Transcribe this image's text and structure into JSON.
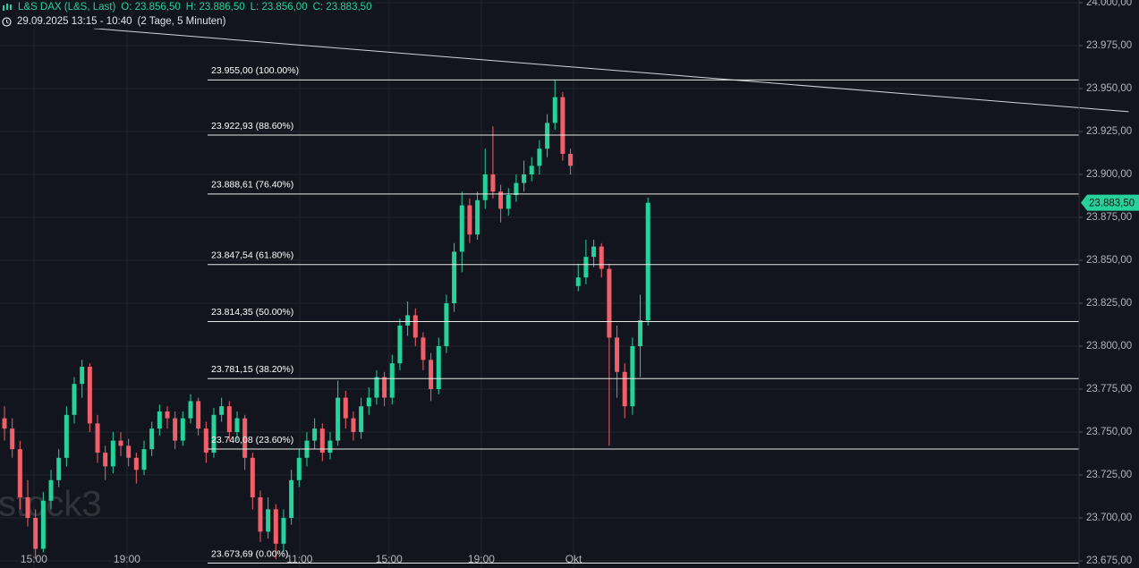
{
  "header": {
    "symbol": "L&S DAX (L&S, Last)",
    "ohlc": [
      "O: 23.856,50",
      "H: 23.886,50",
      "L: 23.856,00",
      "C: 23.883,50"
    ],
    "range": "29.09.2025 13:15 - 10:40",
    "interval": "(2 Tage, 5 Minuten)"
  },
  "chart_data": {
    "type": "candlestick",
    "watermark": "stock3",
    "up_color": "#26d19b",
    "down_color": "#f0606a",
    "grid": true,
    "xlim": [
      -0.58,
      138.6
    ],
    "ylim": [
      23675,
      24000
    ],
    "xticks": [
      {
        "value": 3.8,
        "label": "15:00"
      },
      {
        "value": 15.8,
        "label": "19:00"
      },
      {
        "value": 38.07,
        "label": "11:00"
      },
      {
        "value": 49.6,
        "label": "15:00"
      },
      {
        "value": 61.5,
        "label": "19:00"
      },
      {
        "value": 73.4,
        "label": "Okt"
      }
    ],
    "yticks": [
      {
        "value": 23675,
        "label": "23.675,00"
      },
      {
        "value": 23700,
        "label": "23.700,00"
      },
      {
        "value": 23725,
        "label": "23.725,00"
      },
      {
        "value": 23750,
        "label": "23.750,00"
      },
      {
        "value": 23775,
        "label": "23.775,00"
      },
      {
        "value": 23800,
        "label": "23.800,00"
      },
      {
        "value": 23825,
        "label": "23.825,00"
      },
      {
        "value": 23850,
        "label": "23.850,00"
      },
      {
        "value": 23875,
        "label": "23.875,00"
      },
      {
        "value": 23900,
        "label": "23.900,00"
      },
      {
        "value": 23925,
        "label": "23.925,00"
      },
      {
        "value": 23950,
        "label": "23.950,00"
      },
      {
        "value": 23975,
        "label": "23.975,00"
      },
      {
        "value": 24000,
        "label": "24.000,00"
      }
    ],
    "last_price": {
      "value": 23883.5,
      "label": "23.883,50"
    },
    "fib_levels": [
      {
        "value": 23955,
        "label": "23.955,00 (100.00%)"
      },
      {
        "value": 23922.93,
        "label": "23.922,93 (88.60%)"
      },
      {
        "value": 23888.61,
        "label": "23.888,61 (76.40%)"
      },
      {
        "value": 23847.54,
        "label": "23.847,54 (61.80%)"
      },
      {
        "value": 23814.35,
        "label": "23.814,35 (50.00%)"
      },
      {
        "value": 23781.15,
        "label": "23.781,15 (38.20%)"
      },
      {
        "value": 23740.08,
        "label": "23.740,08 (23.60%)"
      },
      {
        "value": 23673.69,
        "label": "23.673,69 (0.00%)"
      }
    ],
    "trendline": {
      "x": [
        11.5,
        145
      ],
      "y": [
        23985,
        23936.5
      ]
    },
    "candles": [
      [
        23758,
        23765,
        23745,
        23752
      ],
      [
        23752,
        23758,
        23735,
        23740
      ],
      [
        23740,
        23745,
        23705,
        23712
      ],
      [
        23712,
        23722,
        23695,
        23700
      ],
      [
        23700,
        23705,
        23676,
        23682
      ],
      [
        23682,
        23715,
        23680,
        23710
      ],
      [
        23710,
        23728,
        23705,
        23722
      ],
      [
        23722,
        23740,
        23718,
        23735
      ],
      [
        23735,
        23765,
        23730,
        23760
      ],
      [
        23760,
        23782,
        23755,
        23778
      ],
      [
        23778,
        23792,
        23770,
        23788
      ],
      [
        23788,
        23790,
        23750,
        23755
      ],
      [
        23755,
        23760,
        23732,
        23738
      ],
      [
        23738,
        23742,
        23722,
        23730
      ],
      [
        23730,
        23750,
        23726,
        23745
      ],
      [
        23745,
        23750,
        23736,
        23742
      ],
      [
        23742,
        23746,
        23730,
        23735
      ],
      [
        23735,
        23738,
        23720,
        23728
      ],
      [
        23728,
        23745,
        23725,
        23740
      ],
      [
        23740,
        23756,
        23736,
        23752
      ],
      [
        23752,
        23766,
        23748,
        23762
      ],
      [
        23762,
        23765,
        23752,
        23758
      ],
      [
        23758,
        23762,
        23740,
        23745
      ],
      [
        23745,
        23762,
        23742,
        23758
      ],
      [
        23758,
        23772,
        23755,
        23768
      ],
      [
        23768,
        23770,
        23748,
        23752
      ],
      [
        23752,
        23756,
        23732,
        23738
      ],
      [
        23738,
        23764,
        23735,
        23760
      ],
      [
        23760,
        23770,
        23756,
        23765
      ],
      [
        23765,
        23768,
        23745,
        23750
      ],
      [
        23750,
        23762,
        23745,
        23758
      ],
      [
        23758,
        23760,
        23728,
        23735
      ],
      [
        23735,
        23738,
        23705,
        23712
      ],
      [
        23712,
        23716,
        23686,
        23692
      ],
      [
        23692,
        23712,
        23688,
        23705
      ],
      [
        23705,
        23708,
        23676,
        23685
      ],
      [
        23685,
        23705,
        23680,
        23700
      ],
      [
        23700,
        23728,
        23696,
        23722
      ],
      [
        23722,
        23740,
        23718,
        23735
      ],
      [
        23735,
        23750,
        23730,
        23745
      ],
      [
        23745,
        23758,
        23740,
        23752
      ],
      [
        23752,
        23755,
        23733,
        23738
      ],
      [
        23738,
        23750,
        23734,
        23745
      ],
      [
        23745,
        23780,
        23742,
        23770
      ],
      [
        23770,
        23774,
        23752,
        23758
      ],
      [
        23758,
        23762,
        23745,
        23750
      ],
      [
        23750,
        23770,
        23746,
        23765
      ],
      [
        23765,
        23776,
        23760,
        23770
      ],
      [
        23770,
        23786,
        23766,
        23782
      ],
      [
        23782,
        23785,
        23765,
        23770
      ],
      [
        23770,
        23795,
        23766,
        23790
      ],
      [
        23790,
        23816,
        23786,
        23812
      ],
      [
        23812,
        23826,
        23806,
        23818
      ],
      [
        23818,
        23822,
        23800,
        23805
      ],
      [
        23805,
        23808,
        23786,
        23792
      ],
      [
        23792,
        23796,
        23768,
        23775
      ],
      [
        23775,
        23805,
        23772,
        23800
      ],
      [
        23800,
        23830,
        23796,
        23825
      ],
      [
        23825,
        23860,
        23820,
        23855
      ],
      [
        23855,
        23890,
        23843,
        23882
      ],
      [
        23882,
        23886,
        23860,
        23865
      ],
      [
        23865,
        23890,
        23862,
        23885
      ],
      [
        23885,
        23915,
        23880,
        23900
      ],
      [
        23900,
        23928,
        23886,
        23890
      ],
      [
        23890,
        23894,
        23872,
        23880
      ],
      [
        23880,
        23892,
        23876,
        23888
      ],
      [
        23888,
        23900,
        23884,
        23895
      ],
      [
        23895,
        23908,
        23890,
        23900
      ],
      [
        23900,
        23910,
        23896,
        23905
      ],
      [
        23905,
        23920,
        23900,
        23915
      ],
      [
        23915,
        23935,
        23910,
        23930
      ],
      [
        23930,
        23955,
        23926,
        23945
      ],
      [
        23945,
        23948,
        23908,
        23912
      ],
      [
        23912,
        23915,
        23900,
        23905
      ],
      [
        23835,
        23848,
        23832,
        23840
      ],
      [
        23840,
        23862,
        23836,
        23852
      ],
      [
        23852,
        23862,
        23846,
        23858
      ],
      [
        23858,
        23860,
        23840,
        23845
      ],
      [
        23845,
        23848,
        23742,
        23805
      ],
      [
        23805,
        23812,
        23770,
        23785
      ],
      [
        23785,
        23790,
        23758,
        23765
      ],
      [
        23765,
        23805,
        23760,
        23800
      ],
      [
        23800,
        23830,
        23782,
        23815
      ],
      [
        23815,
        23886.5,
        23812,
        23883.5
      ]
    ]
  }
}
